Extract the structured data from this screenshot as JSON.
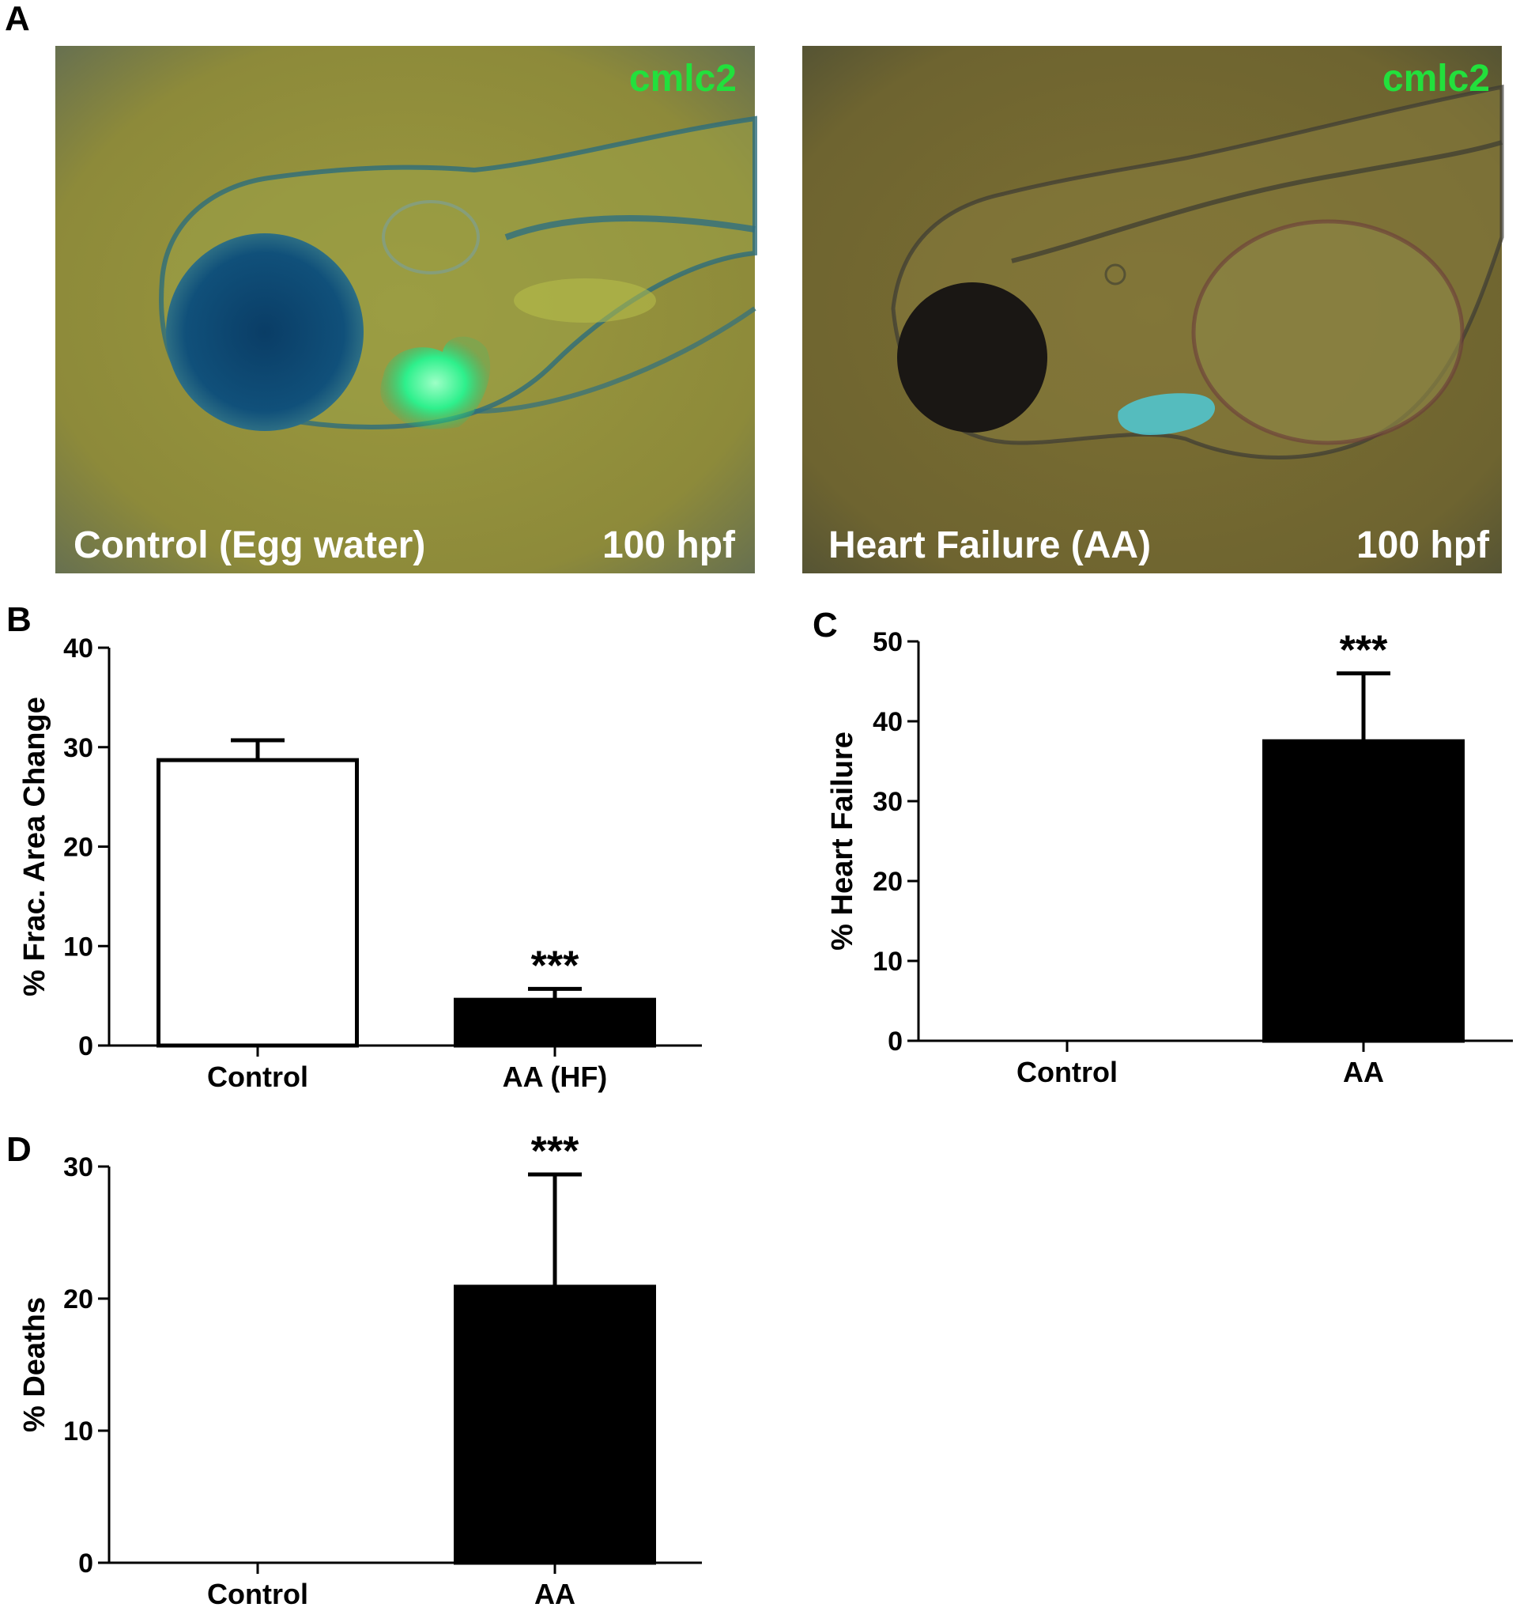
{
  "panel_a": {
    "letter": "A",
    "images": [
      {
        "caption": "Control (Egg water)",
        "stage": "100 hpf",
        "marker": "cmlc2"
      },
      {
        "caption": "Heart Failure (AA)",
        "stage": "100 hpf",
        "marker": "cmlc2"
      }
    ]
  },
  "chart_data": [
    {
      "panel": "B",
      "type": "bar",
      "categories": [
        "Control",
        "AA (HF)"
      ],
      "values": [
        28.7,
        4.6
      ],
      "errors": [
        2.0,
        1.1
      ],
      "bar_fills": [
        "#ffffff",
        "#000000"
      ],
      "significance": [
        "",
        "***"
      ],
      "ylabel": "% Frac. Area Change",
      "ylim": [
        0,
        40
      ],
      "yticks": [
        0,
        10,
        20,
        30,
        40
      ]
    },
    {
      "panel": "C",
      "type": "bar",
      "categories": [
        "Control",
        "AA"
      ],
      "values": [
        0,
        37.5
      ],
      "errors": [
        0,
        8.5
      ],
      "bar_fills": [
        "#ffffff",
        "#000000"
      ],
      "significance": [
        "",
        "***"
      ],
      "ylabel": "% Heart Failure",
      "ylim": [
        0,
        50
      ],
      "yticks": [
        0,
        10,
        20,
        30,
        40,
        50
      ]
    },
    {
      "panel": "D",
      "type": "bar",
      "categories": [
        "Control",
        "AA"
      ],
      "values": [
        0,
        20.9
      ],
      "errors": [
        0,
        8.5
      ],
      "bar_fills": [
        "#ffffff",
        "#000000"
      ],
      "significance": [
        "",
        "***"
      ],
      "ylabel": "% Deaths",
      "ylim": [
        0,
        30
      ],
      "yticks": [
        0,
        10,
        20,
        30
      ]
    }
  ]
}
